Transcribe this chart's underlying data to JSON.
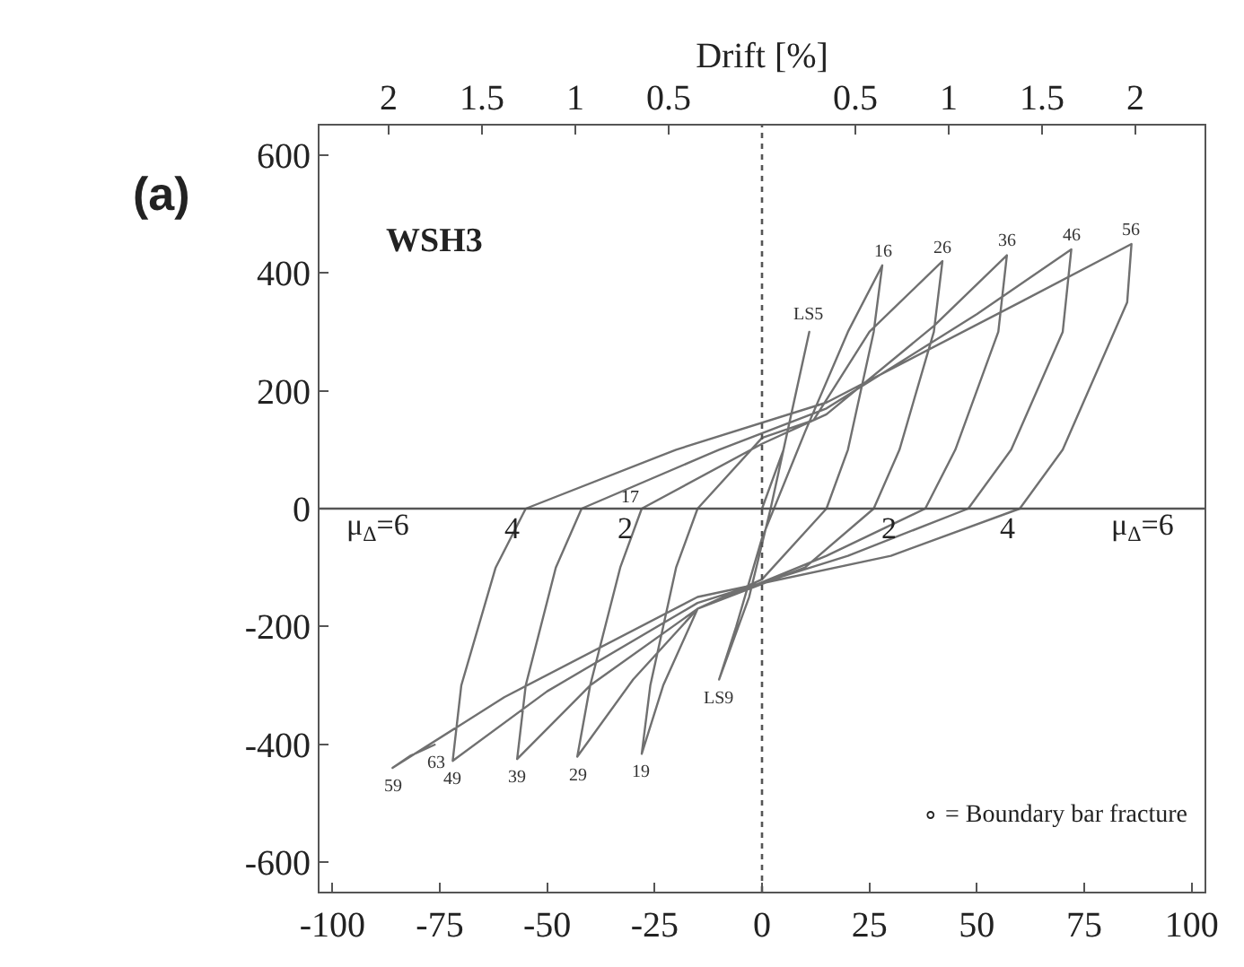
{
  "chart_data": {
    "type": "line",
    "x2label": "Drift [%]",
    "x": [
      0,
      5,
      11,
      8,
      2,
      -3,
      -10,
      -6,
      0,
      10,
      20,
      28,
      26,
      20,
      15,
      0,
      -15,
      -23,
      -28,
      -26,
      -20,
      -15,
      0,
      12,
      25,
      42,
      40,
      32,
      26,
      10,
      -15,
      -30,
      -43,
      -40,
      -33,
      -28,
      0,
      15,
      40,
      57,
      55,
      45,
      38,
      15,
      -15,
      -40,
      -57,
      -55,
      -48,
      -42,
      -10,
      15,
      50,
      72,
      70,
      58,
      48,
      20,
      -15,
      -50,
      -72,
      -70,
      -62,
      -55,
      -20,
      15,
      60,
      86,
      85,
      70,
      60,
      30,
      -15,
      -60,
      -86,
      -82,
      -76
    ],
    "series": [
      {
        "color": "#707070",
        "values": [
          0,
          100,
          300,
          200,
          0,
          -150,
          -290,
          -200,
          -50,
          130,
          300,
          413,
          300,
          100,
          0,
          -120,
          -170,
          -300,
          -416,
          -300,
          -100,
          0,
          120,
          150,
          300,
          420,
          300,
          100,
          0,
          -100,
          -170,
          -290,
          -421,
          -300,
          -100,
          0,
          110,
          160,
          310,
          430,
          300,
          100,
          0,
          -80,
          -170,
          -300,
          -425,
          -300,
          -100,
          0,
          100,
          170,
          330,
          440,
          300,
          100,
          0,
          -80,
          -160,
          -310,
          -428,
          -300,
          -100,
          0,
          100,
          180,
          350,
          449,
          350,
          100,
          0,
          -80,
          -150,
          -320,
          -440,
          -420,
          -400
        ]
      }
    ],
    "xlim": [
      -103,
      103
    ],
    "ylim": [
      -650,
      650
    ],
    "xticks": [
      -100,
      -75,
      -50,
      -25,
      0,
      25,
      50,
      75,
      100
    ],
    "yticks": [
      -600,
      -400,
      -200,
      0,
      200,
      400,
      600
    ],
    "x2lim": [
      -2.37,
      2.37
    ],
    "x2ticks": [
      {
        "value": -2,
        "label": "2"
      },
      {
        "value": -1.5,
        "label": "1.5"
      },
      {
        "value": -1,
        "label": "1"
      },
      {
        "value": -0.5,
        "label": "0.5"
      },
      {
        "value": 0.5,
        "label": "0.5"
      },
      {
        "value": 1,
        "label": "1"
      },
      {
        "value": 1.5,
        "label": "1.5"
      },
      {
        "value": 2,
        "label": "2"
      }
    ],
    "ref_lines": [
      {
        "axis": "x",
        "value": 0,
        "line_style": "dotted"
      },
      {
        "axis": "y",
        "value": 0,
        "line_style": "solid"
      }
    ],
    "marker": "none",
    "line_style": "solid",
    "annotations": [
      "(a)",
      "WSH3",
      "∘ = Boundary bar fracture",
      {
        "text": "LS5",
        "x": 11,
        "y": 307
      },
      {
        "text": "16",
        "x": 28,
        "y": 413
      },
      {
        "text": "26",
        "x": 42,
        "y": 420
      },
      {
        "text": "36",
        "x": 57,
        "y": 430
      },
      {
        "text": "46",
        "x": 72,
        "y": 440
      },
      {
        "text": "56",
        "x": 86,
        "y": 449
      },
      {
        "text": "LS9",
        "x": -10,
        "y": -290
      },
      {
        "text": "19",
        "x": -28,
        "y": -416
      },
      {
        "text": "29",
        "x": -43,
        "y": -421
      },
      {
        "text": "39",
        "x": -57,
        "y": -425
      },
      {
        "text": "49",
        "x": -72,
        "y": -428
      },
      {
        "text": "59",
        "x": -86,
        "y": -440
      },
      {
        "text": "63",
        "x": -76,
        "y": -400
      },
      "17",
      "μ$_{Δ}$=6",
      "4",
      "2",
      "2",
      "4",
      "μ$_{Δ}$=6"
    ]
  }
}
